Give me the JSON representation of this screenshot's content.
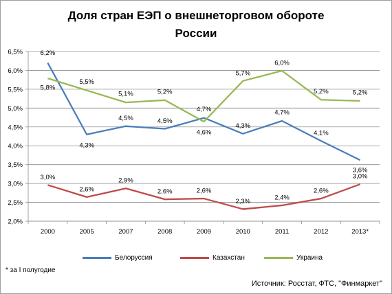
{
  "chart_data": {
    "type": "line",
    "title_line1": "Доля стран ЕЭП о внешнеторговом обороте",
    "title_line2": "России",
    "categories": [
      "2000",
      "2005",
      "2007",
      "2008",
      "2009",
      "2010",
      "2011",
      "2012",
      "2013*"
    ],
    "y_ticks": [
      "2,0%",
      "2,5%",
      "3,0%",
      "3,5%",
      "4,0%",
      "4,5%",
      "5,0%",
      "5,5%",
      "6,0%",
      "6,5%"
    ],
    "ylim": [
      2.0,
      6.5
    ],
    "grid": true,
    "legend_position": "bottom",
    "series": [
      {
        "name": "Белоруссия",
        "color": "#4a7ebb",
        "values": [
          6.2,
          4.3,
          4.52,
          4.45,
          4.74,
          4.32,
          4.66,
          4.13,
          3.62
        ],
        "labels": [
          "6,2%",
          "4,3%",
          "4,5%",
          "4,5%",
          "4,7%",
          "4,3%",
          "4,7%",
          "4,1%",
          "3,6%"
        ]
      },
      {
        "name": "Казахстан",
        "color": "#be4b48",
        "values": [
          2.96,
          2.64,
          2.87,
          2.58,
          2.6,
          2.32,
          2.42,
          2.6,
          2.98
        ],
        "labels": [
          "3,0%",
          "2,6%",
          "2,9%",
          "2,6%",
          "2,6%",
          "2,3%",
          "2,4%",
          "2,6%",
          "3,0%"
        ]
      },
      {
        "name": "Украина",
        "color": "#98b954",
        "values": [
          5.79,
          5.47,
          5.15,
          5.21,
          4.64,
          5.72,
          5.99,
          5.22,
          5.19
        ],
        "labels": [
          "5,8%",
          "5,5%",
          "5,1%",
          "5,2%",
          "4,6%",
          "5,7%",
          "6,0%",
          "5,2%",
          "5,2%"
        ]
      }
    ]
  },
  "note": "* за I полугодие",
  "source": "Источник: Росстат, ФТС, \"Финмаркет\""
}
